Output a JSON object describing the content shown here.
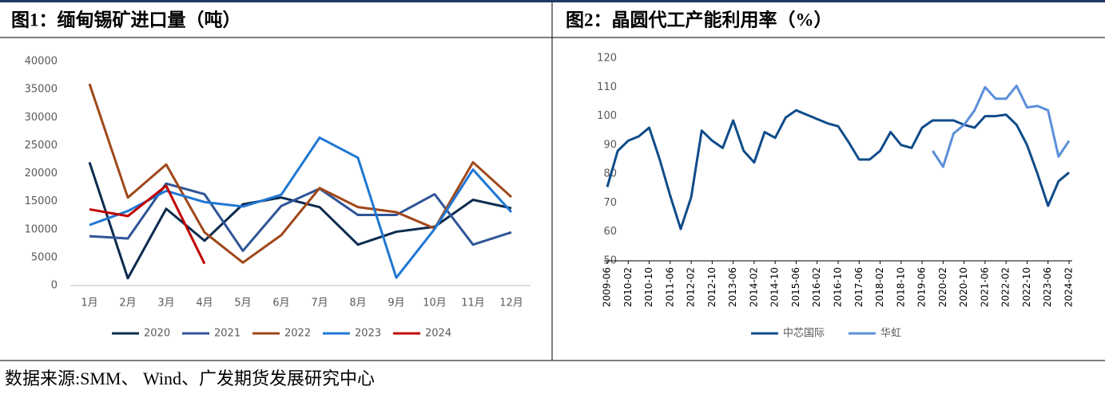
{
  "chart_data": [
    {
      "type": "line",
      "title": "图1：缅甸锡矿进口量（吨）",
      "categories": [
        "1月",
        "2月",
        "3月",
        "4月",
        "5月",
        "6月",
        "7月",
        "8月",
        "9月",
        "10月",
        "11月",
        "12月"
      ],
      "ylim": [
        0,
        40000
      ],
      "yticks": [
        0,
        5000,
        10000,
        15000,
        20000,
        25000,
        30000,
        35000,
        40000
      ],
      "grid": false,
      "legend": "bottom",
      "series": [
        {
          "name": "2020",
          "color": "#0d2b4e",
          "values": [
            22000,
            1300,
            13700,
            8000,
            14500,
            15700,
            14000,
            7300,
            9600,
            10500,
            15300,
            13800
          ]
        },
        {
          "name": "2021",
          "color": "#2f5597",
          "values": [
            8800,
            8400,
            18200,
            16300,
            6200,
            14200,
            17300,
            12600,
            12600,
            16300,
            7300,
            9500
          ]
        },
        {
          "name": "2022",
          "color": "#a0471a",
          "values": [
            36000,
            15700,
            21600,
            9500,
            4100,
            9000,
            17400,
            14000,
            13100,
            10200,
            22000,
            15800
          ]
        },
        {
          "name": "2023",
          "color": "#1f77d4",
          "values": [
            10800,
            13300,
            16900,
            14900,
            14100,
            16200,
            26400,
            22800,
            1400,
            10100,
            20700,
            13100
          ]
        },
        {
          "name": "2024",
          "color": "#c00000",
          "values": [
            13600,
            12400,
            17800,
            3900,
            null,
            null,
            null,
            null,
            null,
            null,
            null,
            null
          ]
        }
      ]
    },
    {
      "type": "line",
      "title": "图2：晶圆代工产能利用率（%）",
      "categories": [
        "2009-06",
        null,
        "2010-02",
        null,
        "2010-10",
        null,
        "2011-06",
        null,
        "2012-02",
        null,
        "2012-10",
        null,
        "2013-06",
        null,
        "2014-02",
        null,
        "2014-10",
        null,
        "2015-06",
        null,
        "2016-02",
        null,
        "2016-10",
        null,
        "2017-06",
        null,
        "2018-02",
        null,
        "2018-10",
        null,
        "2019-06",
        null,
        "2020-02",
        null,
        "2020-10",
        null,
        "2021-06",
        null,
        "2022-02",
        null,
        "2022-10",
        null,
        "2023-06",
        null,
        "2024-02"
      ],
      "ylim": [
        50,
        120
      ],
      "yticks": [
        50,
        60,
        70,
        80,
        90,
        100,
        110,
        120
      ],
      "grid": false,
      "legend": "bottom",
      "series": [
        {
          "name": "中芯国际",
          "color": "#0f4c8a",
          "values": [
            75.5,
            88,
            91.5,
            93,
            96,
            85,
            72.5,
            61,
            72,
            95,
            91.5,
            89,
            98.5,
            88,
            84,
            94.5,
            92.5,
            99.5,
            102,
            100.5,
            99,
            97.5,
            96.5,
            91,
            85,
            85,
            88,
            94.5,
            90,
            89,
            96,
            98.5,
            98.5,
            98.5,
            97,
            96,
            100,
            100,
            100.5,
            97,
            90,
            80,
            69,
            77.5,
            80.5
          ]
        },
        {
          "name": "华虹",
          "color": "#5b8fd9",
          "values": [
            null,
            null,
            null,
            null,
            null,
            null,
            null,
            null,
            null,
            null,
            null,
            null,
            null,
            null,
            null,
            null,
            null,
            null,
            null,
            null,
            null,
            null,
            null,
            null,
            null,
            null,
            null,
            null,
            null,
            null,
            null,
            88,
            82.5,
            94,
            97,
            102,
            110,
            106,
            106,
            110.5,
            103,
            103.5,
            102,
            86,
            91.5
          ]
        }
      ]
    }
  ],
  "source": "数据来源:SMM、 Wind、广发期货发展研究中心"
}
